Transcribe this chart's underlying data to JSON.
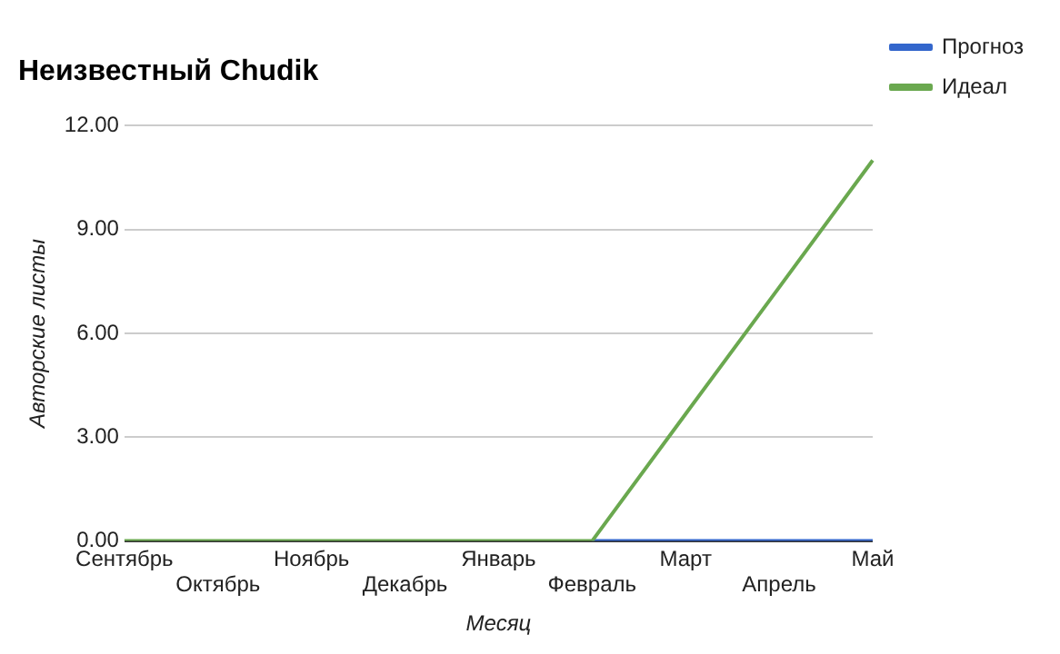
{
  "chart_data": {
    "type": "line",
    "title": "Неизвестный Chudik",
    "xlabel": "Месяц",
    "ylabel": "Авторские листы",
    "categories": [
      "Сентябрь",
      "Октябрь",
      "Ноябрь",
      "Декабрь",
      "Январь",
      "Февраль",
      "Март",
      "Апрель",
      "Май"
    ],
    "series": [
      {
        "name": "Прогноз",
        "color": "#3366cc",
        "values": [
          null,
          null,
          null,
          null,
          null,
          0,
          0,
          0,
          0
        ]
      },
      {
        "name": "Идеал",
        "color": "#6aa84f",
        "values": [
          0,
          0,
          0,
          0,
          0,
          0,
          3.67,
          7.33,
          11
        ]
      }
    ],
    "ylim": [
      0,
      12
    ],
    "yticks": [
      {
        "value": 0,
        "label": "0.00"
      },
      {
        "value": 3,
        "label": "3.00"
      },
      {
        "value": 6,
        "label": "6.00"
      },
      {
        "value": 9,
        "label": "9.00"
      },
      {
        "value": 12,
        "label": "12.00"
      }
    ],
    "grid": "y",
    "legend": "top right",
    "marker": "none",
    "line_style": "solid"
  }
}
